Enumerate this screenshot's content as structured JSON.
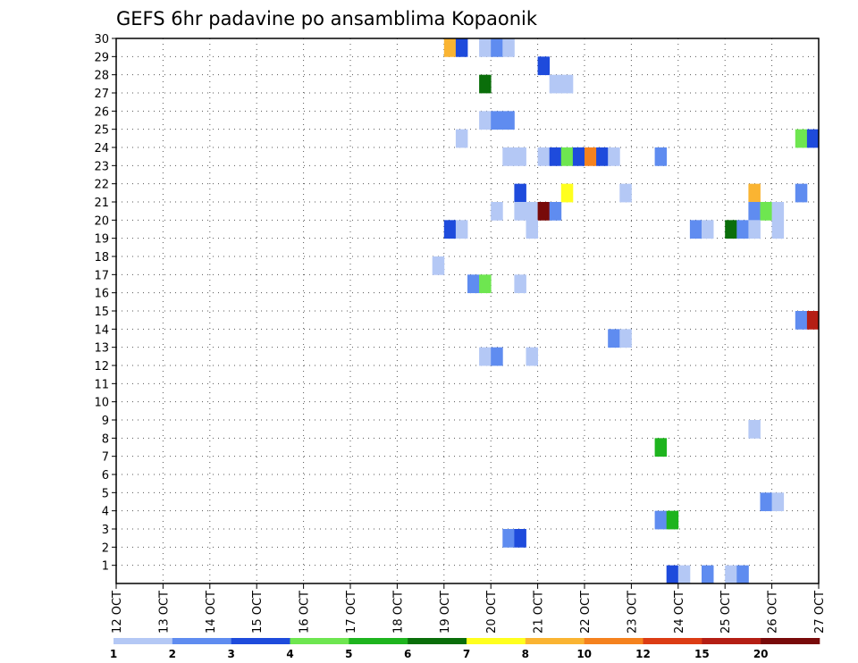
{
  "chart_data": {
    "type": "heatmap",
    "title": "GEFS 6hr padavine po ansamblima Kopaonik",
    "x_ticks": [
      "12 OCT",
      "13 OCT",
      "14 OCT",
      "15 OCT",
      "16 OCT",
      "17 OCT",
      "18 OCT",
      "19 OCT",
      "20 OCT",
      "21 OCT",
      "22 OCT",
      "23 OCT",
      "24 OCT",
      "25 OCT",
      "26 OCT",
      "27 OCT"
    ],
    "y_ticks": [
      "1",
      "2",
      "3",
      "4",
      "5",
      "6",
      "7",
      "8",
      "9",
      "10",
      "11",
      "12",
      "13",
      "14",
      "15",
      "16",
      "17",
      "18",
      "19",
      "20",
      "21",
      "22",
      "23",
      "24",
      "25",
      "26",
      "27",
      "28",
      "29",
      "30"
    ],
    "xlim": [
      0,
      60
    ],
    "ylim": [
      0,
      30
    ],
    "grid": true,
    "colorbar": {
      "labels": [
        "1",
        "2",
        "3",
        "4",
        "5",
        "6",
        "7",
        "8",
        "10",
        "12",
        "15",
        "20"
      ],
      "colors": [
        "#b4c8f5",
        "#5f8cf0",
        "#1e4bdc",
        "#6ee650",
        "#1eb41e",
        "#0a6e0a",
        "#ffff1e",
        "#fab432",
        "#f5821e",
        "#dc3c14",
        "#b41e14",
        "#780a0a"
      ]
    },
    "cell_legend": "x = 6-hour step index from 12 OCT 00Z (4 per day), y = ensemble member, c = colorbar category index (0 = 1..2 mm)",
    "cells": [
      {
        "x": 29,
        "y": 30,
        "c": 7
      },
      {
        "x": 30,
        "y": 30,
        "c": 2
      },
      {
        "x": 32,
        "y": 30,
        "c": 0
      },
      {
        "x": 33,
        "y": 30,
        "c": 1
      },
      {
        "x": 34,
        "y": 30,
        "c": 0
      },
      {
        "x": 37,
        "y": 29,
        "c": 2
      },
      {
        "x": 32,
        "y": 28,
        "c": 5
      },
      {
        "x": 38,
        "y": 28,
        "c": 0
      },
      {
        "x": 39,
        "y": 28,
        "c": 0
      },
      {
        "x": 32,
        "y": 26,
        "c": 0
      },
      {
        "x": 33,
        "y": 26,
        "c": 1
      },
      {
        "x": 34,
        "y": 26,
        "c": 1
      },
      {
        "x": 30,
        "y": 25,
        "c": 0
      },
      {
        "x": 59,
        "y": 25,
        "c": 3
      },
      {
        "x": 60,
        "y": 25,
        "c": 2
      },
      {
        "x": 34,
        "y": 24,
        "c": 0
      },
      {
        "x": 35,
        "y": 24,
        "c": 0
      },
      {
        "x": 37,
        "y": 24,
        "c": 0
      },
      {
        "x": 38,
        "y": 24,
        "c": 2
      },
      {
        "x": 39,
        "y": 24,
        "c": 3
      },
      {
        "x": 40,
        "y": 24,
        "c": 2
      },
      {
        "x": 41,
        "y": 24,
        "c": 8
      },
      {
        "x": 42,
        "y": 24,
        "c": 2
      },
      {
        "x": 43,
        "y": 24,
        "c": 0
      },
      {
        "x": 47,
        "y": 24,
        "c": 1
      },
      {
        "x": 35,
        "y": 22,
        "c": 2
      },
      {
        "x": 39,
        "y": 22,
        "c": 6
      },
      {
        "x": 44,
        "y": 22,
        "c": 0
      },
      {
        "x": 55,
        "y": 22,
        "c": 7
      },
      {
        "x": 59,
        "y": 22,
        "c": 1
      },
      {
        "x": 33,
        "y": 21,
        "c": 0
      },
      {
        "x": 35,
        "y": 21,
        "c": 0
      },
      {
        "x": 36,
        "y": 21,
        "c": 0
      },
      {
        "x": 37,
        "y": 21,
        "c": 11
      },
      {
        "x": 38,
        "y": 21,
        "c": 1
      },
      {
        "x": 55,
        "y": 21,
        "c": 1
      },
      {
        "x": 56,
        "y": 21,
        "c": 3
      },
      {
        "x": 57,
        "y": 21,
        "c": 0
      },
      {
        "x": 29,
        "y": 20,
        "c": 2
      },
      {
        "x": 30,
        "y": 20,
        "c": 0
      },
      {
        "x": 36,
        "y": 20,
        "c": 0
      },
      {
        "x": 50,
        "y": 20,
        "c": 1
      },
      {
        "x": 51,
        "y": 20,
        "c": 0
      },
      {
        "x": 53,
        "y": 20,
        "c": 5
      },
      {
        "x": 54,
        "y": 20,
        "c": 1
      },
      {
        "x": 55,
        "y": 20,
        "c": 0
      },
      {
        "x": 57,
        "y": 20,
        "c": 0
      },
      {
        "x": 28,
        "y": 18,
        "c": 0
      },
      {
        "x": 31,
        "y": 17,
        "c": 1
      },
      {
        "x": 32,
        "y": 17,
        "c": 3
      },
      {
        "x": 35,
        "y": 17,
        "c": 0
      },
      {
        "x": 59,
        "y": 15,
        "c": 1
      },
      {
        "x": 60,
        "y": 15,
        "c": 10
      },
      {
        "x": 43,
        "y": 14,
        "c": 1
      },
      {
        "x": 44,
        "y": 14,
        "c": 0
      },
      {
        "x": 32,
        "y": 13,
        "c": 0
      },
      {
        "x": 33,
        "y": 13,
        "c": 1
      },
      {
        "x": 36,
        "y": 13,
        "c": 0
      },
      {
        "x": 55,
        "y": 9,
        "c": 0
      },
      {
        "x": 47,
        "y": 8,
        "c": 4
      },
      {
        "x": 56,
        "y": 5,
        "c": 1
      },
      {
        "x": 57,
        "y": 5,
        "c": 0
      },
      {
        "x": 47,
        "y": 4,
        "c": 1
      },
      {
        "x": 48,
        "y": 4,
        "c": 4
      },
      {
        "x": 34,
        "y": 3,
        "c": 1
      },
      {
        "x": 35,
        "y": 3,
        "c": 2
      },
      {
        "x": 48,
        "y": 1,
        "c": 2
      },
      {
        "x": 49,
        "y": 1,
        "c": 0
      },
      {
        "x": 51,
        "y": 1,
        "c": 1
      },
      {
        "x": 53,
        "y": 1,
        "c": 0
      },
      {
        "x": 54,
        "y": 1,
        "c": 1
      }
    ]
  }
}
